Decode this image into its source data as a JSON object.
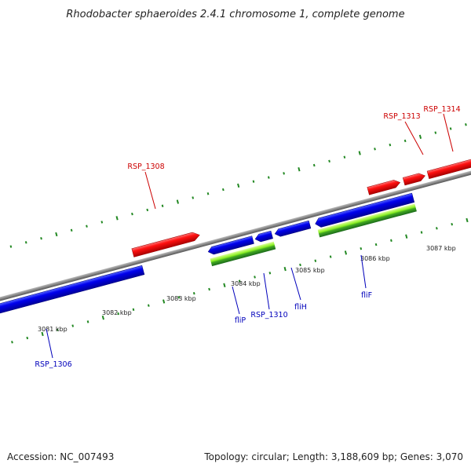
{
  "title": "Rhodobacter sphaeroides 2.4.1 chromosome 1, complete genome",
  "footer": {
    "accession": "Accession: NC_007493",
    "topology": "Topology: circular; Length: 3,188,609 bp; Genes: 3,070"
  },
  "colors": {
    "forward_gene": "#ff0000",
    "reverse_gene": "#0000ee",
    "label_forward": "#cc0000",
    "label_reverse": "#0000bb",
    "feature_light": "#99ff33",
    "feature_dark": "#228822",
    "tick": "#228822",
    "backbone": "#888888"
  },
  "scale_labels": [
    "3081 kbp",
    "3082 kbp",
    "3083 kbp",
    "3084 kbp",
    "3085 kbp",
    "3086 kbp",
    "3087 kbp"
  ],
  "gene_labels": [
    {
      "name": "RSP_1306",
      "strand": "reverse"
    },
    {
      "name": "RSP_1308",
      "strand": "forward"
    },
    {
      "name": "fliP",
      "strand": "reverse"
    },
    {
      "name": "RSP_1310",
      "strand": "reverse"
    },
    {
      "name": "fliH",
      "strand": "reverse"
    },
    {
      "name": "fliF",
      "strand": "reverse"
    },
    {
      "name": "RSP_1313",
      "strand": "forward"
    },
    {
      "name": "RSP_1314",
      "strand": "forward"
    }
  ]
}
